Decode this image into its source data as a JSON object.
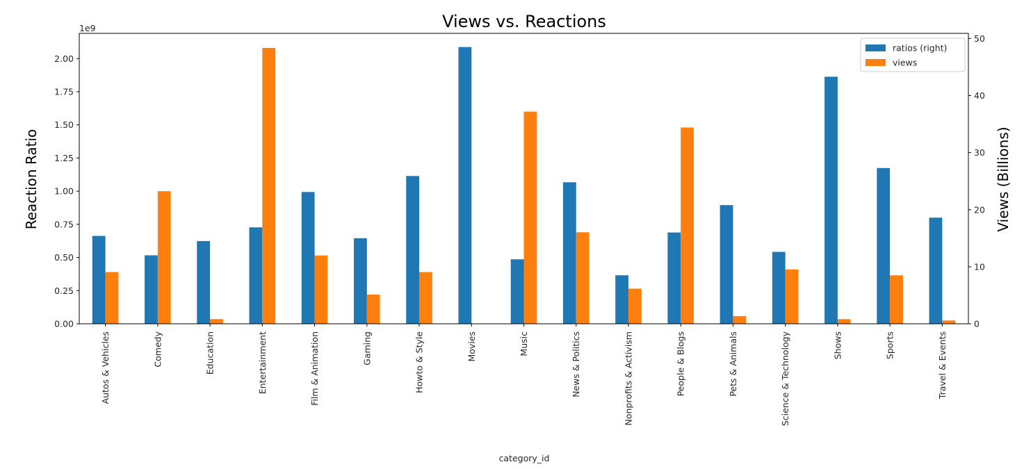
{
  "chart_data": {
    "type": "bar",
    "title": "Views vs. Reactions",
    "xlabel": "category_id",
    "ylabel_left": "Reaction Ratio",
    "ylabel_right": "Views (Billions)",
    "left_offset_text": "1e9",
    "categories": [
      "Autos & Vehicles",
      "Comedy",
      "Education",
      "Entertainment",
      "Film & Animation",
      "Gaming",
      "Howto & Style",
      "Movies",
      "Music",
      "News & Politics",
      "Nonprofits & Activism",
      "People & Blogs",
      "Pets & Animals",
      "Science & Technology",
      "Shows",
      "Sports",
      "Travel & Events"
    ],
    "ylim_left": [
      0,
      2.19
    ],
    "ylim_right": [
      0,
      50.9
    ],
    "left_ticks": [
      0,
      0.25,
      0.5,
      0.75,
      1.0,
      1.25,
      1.5,
      1.75,
      2.0
    ],
    "left_tick_labels": [
      "0.00",
      "0.25",
      "0.50",
      "0.75",
      "1.00",
      "1.25",
      "1.50",
      "1.75",
      "2.00"
    ],
    "right_ticks": [
      0,
      10,
      20,
      30,
      40,
      50
    ],
    "right_tick_labels": [
      "0",
      "10",
      "20",
      "30",
      "40",
      "50"
    ],
    "series": [
      {
        "name": "ratios (right)",
        "axis": "right",
        "color": "#1f77b4",
        "values": [
          15.4,
          12.0,
          14.5,
          16.9,
          23.1,
          15.0,
          25.9,
          48.5,
          11.3,
          24.8,
          8.5,
          16.0,
          20.8,
          12.6,
          43.3,
          27.3,
          18.6
        ]
      },
      {
        "name": "views",
        "axis": "left",
        "color": "#ff7f0e",
        "values": [
          0.39,
          1.0,
          0.035,
          2.08,
          0.515,
          0.22,
          0.39,
          0.0,
          1.6,
          0.69,
          0.265,
          1.48,
          0.058,
          0.41,
          0.035,
          0.365,
          0.025
        ]
      }
    ],
    "legend": {
      "placement": "top-right",
      "entries": [
        "ratios (right)",
        "views"
      ]
    },
    "grid": false
  }
}
